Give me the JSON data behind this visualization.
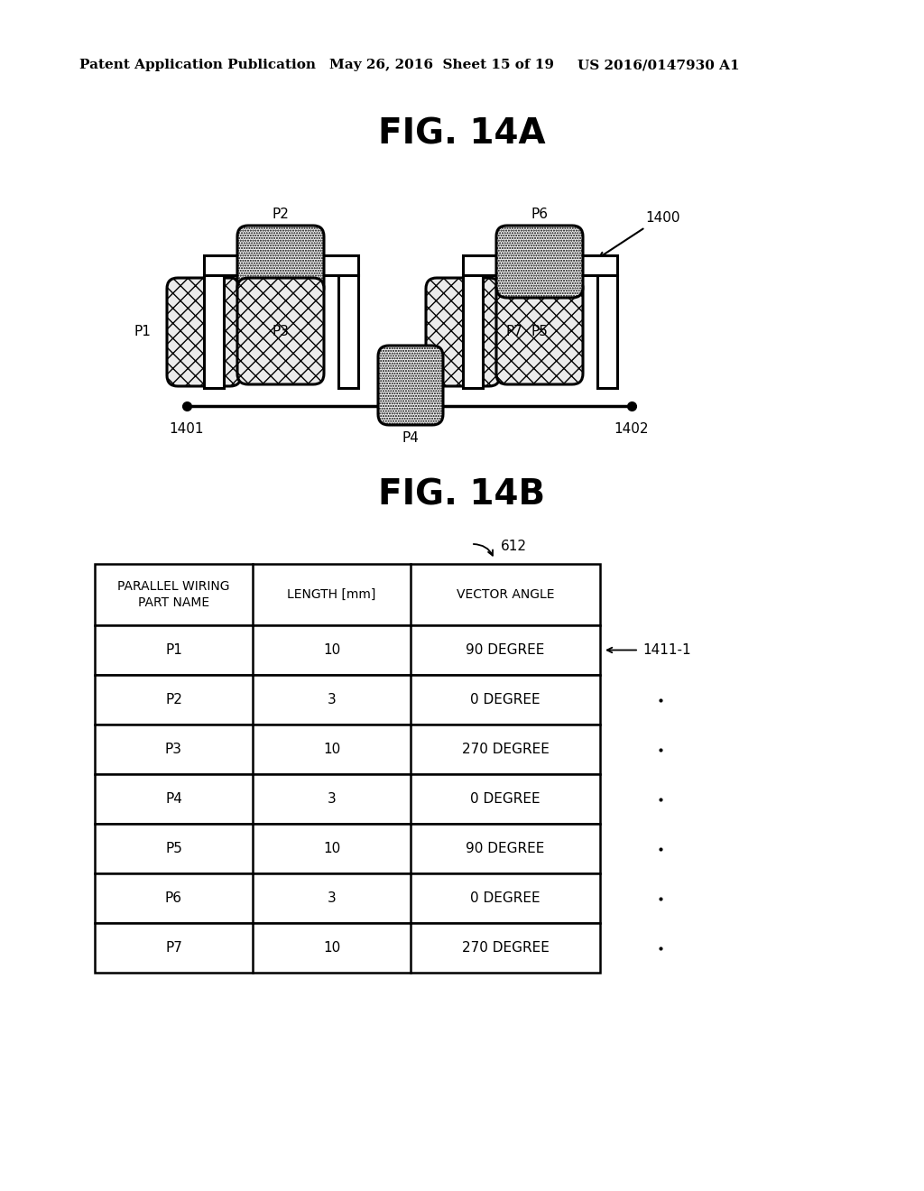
{
  "fig_title_a": "FIG. 14A",
  "fig_title_b": "FIG. 14B",
  "header_text": "Patent Application Publication",
  "header_date": "May 26, 2016  Sheet 15 of 19",
  "header_patent": "US 2016/0147930 A1",
  "label_1400": "1400",
  "label_1401": "1401",
  "label_1402": "1402",
  "label_612": "612",
  "label_1411": "1411-1",
  "table_headers": [
    "PARALLEL WIRING\nPART NAME",
    "LENGTH [mm]",
    "VECTOR ANGLE"
  ],
  "table_rows": [
    [
      "P1",
      "10",
      "90 DEGREE"
    ],
    [
      "P2",
      "3",
      "0 DEGREE"
    ],
    [
      "P3",
      "10",
      "270 DEGREE"
    ],
    [
      "P4",
      "3",
      "0 DEGREE"
    ],
    [
      "P5",
      "10",
      "90 DEGREE"
    ],
    [
      "P6",
      "3",
      "0 DEGREE"
    ],
    [
      "P7",
      "10",
      "270 DEGREE"
    ]
  ],
  "bg_color": "#ffffff",
  "line_color": "#000000",
  "part_labels_left": [
    "P1",
    "P2",
    "P3",
    "P4"
  ],
  "part_labels_right": [
    "P5",
    "P6",
    "P7"
  ]
}
